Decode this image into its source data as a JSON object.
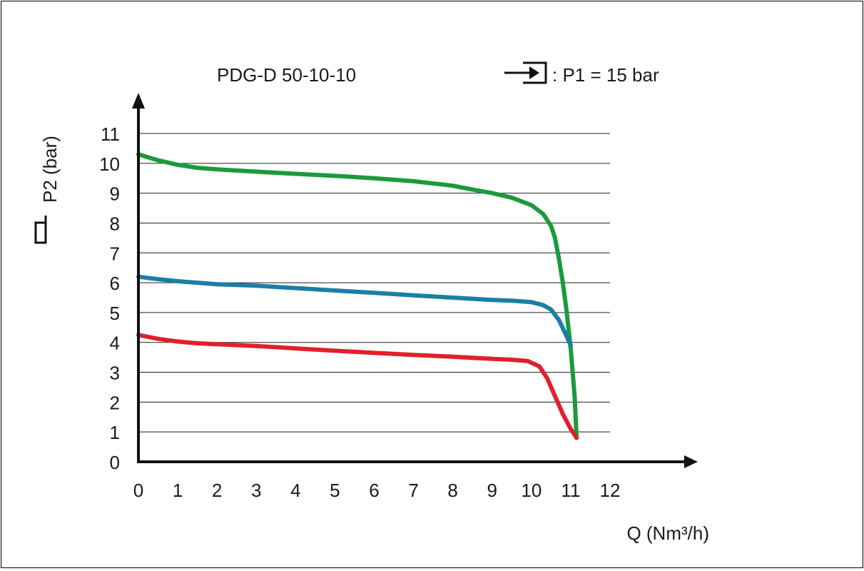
{
  "chart_data": {
    "type": "line",
    "title": "PDG-D 50-10-10",
    "inlet_condition": ": P1 = 15 bar",
    "xlabel": "Q (Nm³/h)",
    "ylabel": "P2 (bar)",
    "xlim": [
      0,
      12
    ],
    "ylim": [
      0,
      11
    ],
    "x_ticks": [
      "0",
      "1",
      "2",
      "3",
      "4",
      "5",
      "6",
      "7",
      "8",
      "9",
      "10",
      "11",
      "12"
    ],
    "y_ticks": [
      "0",
      "1",
      "2",
      "3",
      "4",
      "5",
      "6",
      "7",
      "8",
      "9",
      "10",
      "11"
    ],
    "grid": "horizontal",
    "series": [
      {
        "color": "#1a9a3c",
        "x": [
          0,
          0.5,
          1,
          1.5,
          2,
          3,
          4,
          5,
          6,
          7,
          8,
          8.5,
          9,
          9.5,
          10,
          10.3,
          10.5,
          10.6,
          10.7,
          10.8,
          10.9,
          11.0,
          11.1,
          11.15
        ],
        "y": [
          10.3,
          10.1,
          9.95,
          9.85,
          9.8,
          9.72,
          9.65,
          9.58,
          9.5,
          9.4,
          9.25,
          9.12,
          9.0,
          8.85,
          8.6,
          8.3,
          7.9,
          7.5,
          6.8,
          6.0,
          5.0,
          3.8,
          2.2,
          0.8
        ]
      },
      {
        "color": "#1a7fa3",
        "x": [
          0,
          0.5,
          1,
          1.5,
          2,
          3,
          4,
          5,
          6,
          7,
          8,
          9,
          9.5,
          10,
          10.3,
          10.5,
          10.7,
          10.9,
          11.0
        ],
        "y": [
          6.2,
          6.12,
          6.05,
          6.0,
          5.95,
          5.9,
          5.82,
          5.74,
          5.66,
          5.58,
          5.5,
          5.42,
          5.4,
          5.35,
          5.25,
          5.1,
          4.75,
          4.2,
          3.9
        ]
      },
      {
        "color": "#e0202a",
        "x": [
          0,
          0.5,
          1,
          1.5,
          2,
          3,
          4,
          5,
          6,
          7,
          8,
          9,
          9.5,
          9.9,
          10.2,
          10.4,
          10.6,
          10.8,
          11.0,
          11.15
        ],
        "y": [
          4.25,
          4.12,
          4.03,
          3.97,
          3.94,
          3.88,
          3.8,
          3.72,
          3.65,
          3.58,
          3.52,
          3.45,
          3.42,
          3.38,
          3.2,
          2.8,
          2.2,
          1.6,
          1.1,
          0.8
        ]
      }
    ]
  }
}
